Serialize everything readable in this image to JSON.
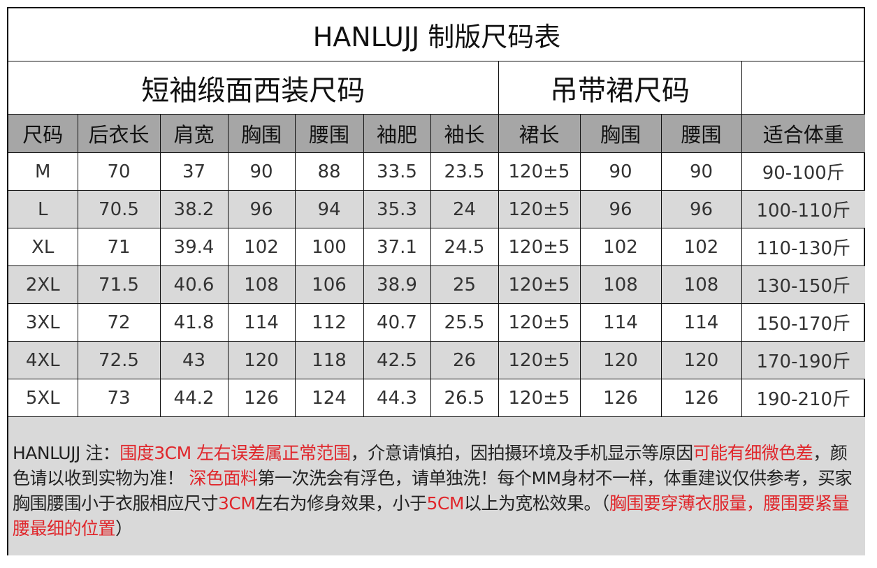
{
  "title": "HANLUJJ 制版尺码表",
  "sections": {
    "suit": "短袖缎面西装尺码",
    "skirt": "吊带裙尺码",
    "blank": ""
  },
  "headers": [
    "尺码",
    "后衣长",
    "肩宽",
    "胸围",
    "腰围",
    "袖肥",
    "袖长",
    "裙长",
    "胸围",
    "腰围",
    "适合体重"
  ],
  "rows": [
    [
      "M",
      "70",
      "37",
      "90",
      "88",
      "33.5",
      "23.5",
      "120±5",
      "90",
      "90",
      "90-100斤"
    ],
    [
      "L",
      "70.5",
      "38.2",
      "96",
      "94",
      "35.3",
      "24",
      "120±5",
      "96",
      "96",
      "100-110斤"
    ],
    [
      "XL",
      "71",
      "39.4",
      "102",
      "100",
      "37.1",
      "24.5",
      "120±5",
      "102",
      "102",
      "110-130斤"
    ],
    [
      "2XL",
      "71.5",
      "40.6",
      "108",
      "106",
      "38.9",
      "25",
      "120±5",
      "108",
      "108",
      "130-150斤"
    ],
    [
      "3XL",
      "72",
      "41.8",
      "114",
      "112",
      "40.7",
      "25.5",
      "120±5",
      "114",
      "114",
      "150-170斤"
    ],
    [
      "4XL",
      "72.5",
      "43",
      "120",
      "118",
      "42.5",
      "26",
      "120±5",
      "120",
      "120",
      "170-190斤"
    ],
    [
      "5XL",
      "73",
      "44.2",
      "126",
      "124",
      "44.3",
      "26.5",
      "120±5",
      "126",
      "126",
      "190-210斤"
    ]
  ],
  "notes": [
    {
      "text": "HANLUJJ 注：",
      "red": false
    },
    {
      "text": "围度3CM 左右误差属正常范围",
      "red": true
    },
    {
      "text": "，介意请慎拍，因拍摄环境及手机显示等原因",
      "red": false
    },
    {
      "text": "可能有细微色差",
      "red": true
    },
    {
      "text": "，颜色请以收到实物为准！ ",
      "red": false
    },
    {
      "text": "深色面料",
      "red": true
    },
    {
      "text": "第一次洗会有浮色，请单独洗！每个MM身材不一样，体重建议仅供参考，买家胸围腰围小于衣服相应尺寸",
      "red": false
    },
    {
      "text": "3CM",
      "red": true
    },
    {
      "text": "左右为修身效果，小于",
      "red": false
    },
    {
      "text": "5CM",
      "red": true
    },
    {
      "text": "以上为宽松效果。（",
      "red": false
    },
    {
      "text": "胸围要穿薄衣服量，腰围要紧量腰最细的位置",
      "red": true
    },
    {
      "text": "）",
      "red": false
    }
  ],
  "colors": {
    "header_bg": "#a6a6a6",
    "alt_row_bg": "#d9d9d9",
    "note_red": "#e0262b"
  }
}
